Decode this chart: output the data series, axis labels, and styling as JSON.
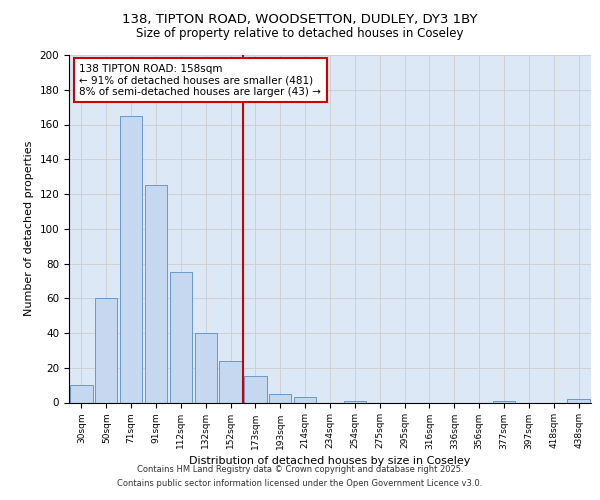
{
  "title_line1": "138, TIPTON ROAD, WOODSETTON, DUDLEY, DY3 1BY",
  "title_line2": "Size of property relative to detached houses in Coseley",
  "xlabel": "Distribution of detached houses by size in Coseley",
  "ylabel": "Number of detached properties",
  "categories": [
    "30sqm",
    "50sqm",
    "71sqm",
    "91sqm",
    "112sqm",
    "132sqm",
    "152sqm",
    "173sqm",
    "193sqm",
    "214sqm",
    "234sqm",
    "254sqm",
    "275sqm",
    "295sqm",
    "316sqm",
    "336sqm",
    "356sqm",
    "377sqm",
    "397sqm",
    "418sqm",
    "438sqm"
  ],
  "values": [
    10,
    60,
    165,
    125,
    75,
    40,
    24,
    15,
    5,
    3,
    0,
    1,
    0,
    0,
    0,
    0,
    0,
    1,
    0,
    0,
    2
  ],
  "bar_color": "#c5d8f0",
  "bar_edgecolor": "#6699cc",
  "vline_x_index": 6.5,
  "vline_color": "#cc0000",
  "annotation_line1": "138 TIPTON ROAD: 158sqm",
  "annotation_line2": "← 91% of detached houses are smaller (481)",
  "annotation_line3": "8% of semi-detached houses are larger (43) →",
  "annotation_box_edgecolor": "#cc0000",
  "annotation_box_fill": "#ffffff",
  "ylim": [
    0,
    200
  ],
  "yticks": [
    0,
    20,
    40,
    60,
    80,
    100,
    120,
    140,
    160,
    180,
    200
  ],
  "grid_color": "#cccccc",
  "background_color": "#dce8f5",
  "footer_line1": "Contains HM Land Registry data © Crown copyright and database right 2025.",
  "footer_line2": "Contains public sector information licensed under the Open Government Licence v3.0."
}
